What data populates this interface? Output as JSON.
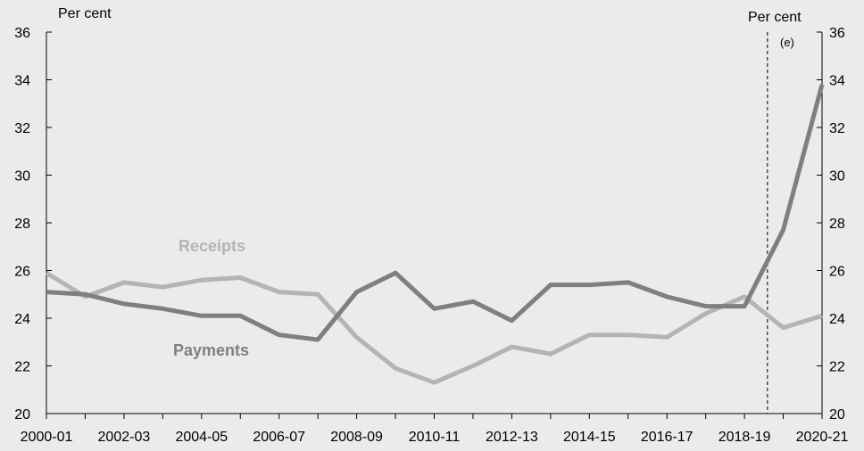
{
  "chart_data": {
    "type": "line",
    "left_unit": "Per cent",
    "right_unit": "Per cent",
    "estimate_marker": "(e)",
    "ylim": [
      20,
      36
    ],
    "yticks": [
      "20",
      "22",
      "24",
      "26",
      "28",
      "30",
      "32",
      "34",
      "36"
    ],
    "x": [
      "2000-01",
      "2001-02",
      "2002-03",
      "2003-04",
      "2004-05",
      "2005-06",
      "2006-07",
      "2007-08",
      "2008-09",
      "2009-10",
      "2010-11",
      "2011-12",
      "2012-13",
      "2013-14",
      "2014-15",
      "2015-16",
      "2016-17",
      "2017-18",
      "2018-19",
      "2019-20",
      "2020-21"
    ],
    "xtick_labels": [
      "2000-01",
      "2002-03",
      "2004-05",
      "2006-07",
      "2008-09",
      "2010-11",
      "2012-13",
      "2014-15",
      "2016-17",
      "2018-19",
      "2020-21"
    ],
    "estimate_start": "2019-20",
    "series": [
      {
        "name": "Receipts",
        "color": "#b4b4b4",
        "values": [
          25.9,
          24.9,
          25.5,
          25.3,
          25.6,
          25.7,
          25.1,
          25.0,
          23.2,
          21.9,
          21.3,
          22.0,
          22.8,
          22.5,
          23.3,
          23.3,
          23.2,
          24.2,
          24.9,
          23.6,
          24.1
        ]
      },
      {
        "name": "Payments",
        "color": "#7f7f7f",
        "values": [
          25.1,
          25.0,
          24.6,
          24.4,
          24.1,
          24.1,
          23.3,
          23.1,
          25.1,
          25.9,
          24.4,
          24.7,
          23.9,
          25.4,
          25.4,
          25.5,
          24.9,
          24.5,
          24.5,
          27.7,
          33.8
        ]
      }
    ]
  }
}
